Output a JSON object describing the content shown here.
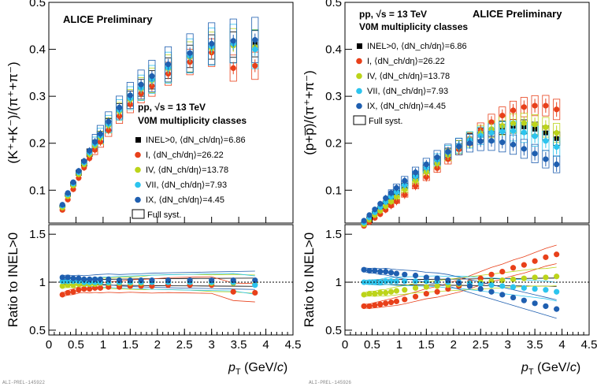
{
  "chart_data": [
    {
      "type": "scatter",
      "id": "left",
      "preliminary_label": "ALICE Preliminary",
      "system_label": "pp, √s = 13 TeV",
      "subtitle": "V0M multiplicity classes",
      "ylabel": "(K⁺+K⁻)/(π⁺+π⁻)",
      "ratio_ylabel": "Ratio to INEL>0",
      "xlabel": "p_T (GeV/c)",
      "xlim": [
        0,
        4.5
      ],
      "ylim": [
        0.03,
        0.5
      ],
      "ratio_ylim": [
        0.45,
        1.6
      ],
      "xticks": [
        "0",
        "0.5",
        "1",
        "1.5",
        "2",
        "2.5",
        "3",
        "3.5",
        "4",
        "4.5"
      ],
      "yticks": [
        "0.1",
        "0.2",
        "0.3",
        "0.4",
        "0.5"
      ],
      "ratio_yticks": [
        "0.5",
        "1",
        "1.5"
      ],
      "legend_position": "center-right",
      "syst_label": "Full syst.",
      "series": [
        {
          "name": "INEL>0, ⟨dN_ch/dη⟩=6.86",
          "color": "#000000",
          "marker": "square",
          "x": [
            0.25,
            0.35,
            0.45,
            0.55,
            0.65,
            0.75,
            0.85,
            0.95,
            1.1,
            1.3,
            1.5,
            1.7,
            1.9,
            2.2,
            2.6,
            3.0,
            3.4,
            3.8
          ],
          "y": [
            0.066,
            0.09,
            0.113,
            0.137,
            0.158,
            0.18,
            0.198,
            0.215,
            0.24,
            0.27,
            0.295,
            0.318,
            0.335,
            0.36,
            0.385,
            0.405,
            0.41,
            0.412
          ],
          "ratio": [
            1,
            1,
            1,
            1,
            1,
            1,
            1,
            1,
            1,
            1,
            1,
            1,
            1,
            1,
            1,
            1,
            1,
            1
          ]
        },
        {
          "name": "I, ⟨dN_ch/dη⟩=26.22",
          "color": "#e8401a",
          "marker": "circle",
          "x": [
            0.25,
            0.35,
            0.45,
            0.55,
            0.65,
            0.75,
            0.85,
            0.95,
            1.1,
            1.3,
            1.5,
            1.7,
            1.9,
            2.2,
            2.6,
            3.0,
            3.4,
            3.8
          ],
          "y": [
            0.058,
            0.08,
            0.102,
            0.126,
            0.148,
            0.168,
            0.186,
            0.203,
            0.228,
            0.258,
            0.283,
            0.306,
            0.322,
            0.348,
            0.373,
            0.393,
            0.36,
            0.365
          ],
          "ratio": [
            0.87,
            0.89,
            0.9,
            0.92,
            0.93,
            0.93,
            0.94,
            0.94,
            0.95,
            0.95,
            0.96,
            0.96,
            0.96,
            0.97,
            0.97,
            0.97,
            0.9,
            0.89
          ]
        },
        {
          "name": "IV, ⟨dN_ch/dη⟩=13.78",
          "color": "#bcd41a",
          "marker": "circle",
          "x": [
            0.25,
            0.35,
            0.45,
            0.55,
            0.65,
            0.75,
            0.85,
            0.95,
            1.1,
            1.3,
            1.5,
            1.7,
            1.9,
            2.2,
            2.6,
            3.0,
            3.4,
            3.8
          ],
          "y": [
            0.063,
            0.087,
            0.11,
            0.134,
            0.155,
            0.176,
            0.195,
            0.212,
            0.238,
            0.268,
            0.293,
            0.316,
            0.334,
            0.359,
            0.384,
            0.402,
            0.408,
            0.405
          ],
          "ratio": [
            0.96,
            0.97,
            0.97,
            0.98,
            0.98,
            0.98,
            0.98,
            0.99,
            0.99,
            0.99,
            0.99,
            0.99,
            1.0,
            1.0,
            1.0,
            0.99,
            0.99,
            0.98
          ]
        },
        {
          "name": "VII, ⟨dN_ch/dη⟩=7.93",
          "color": "#2cc4ee",
          "marker": "circle",
          "x": [
            0.25,
            0.35,
            0.45,
            0.55,
            0.65,
            0.75,
            0.85,
            0.95,
            1.1,
            1.3,
            1.5,
            1.7,
            1.9,
            2.2,
            2.6,
            3.0,
            3.4,
            3.8
          ],
          "y": [
            0.067,
            0.091,
            0.114,
            0.138,
            0.159,
            0.18,
            0.199,
            0.216,
            0.241,
            0.271,
            0.296,
            0.318,
            0.336,
            0.361,
            0.386,
            0.406,
            0.412,
            0.4
          ],
          "ratio": [
            1.01,
            1.01,
            1.01,
            1.01,
            1.0,
            1.0,
            1.0,
            1.0,
            1.0,
            1.0,
            1.0,
            1.0,
            1.0,
            1.0,
            1.0,
            1.0,
            1.0,
            0.97
          ]
        },
        {
          "name": "IX, ⟨dN_ch/dη⟩=4.45",
          "color": "#1f5fb0",
          "marker": "circle",
          "x": [
            0.25,
            0.35,
            0.45,
            0.55,
            0.65,
            0.75,
            0.85,
            0.95,
            1.1,
            1.3,
            1.5,
            1.7,
            1.9,
            2.2,
            2.6,
            3.0,
            3.4,
            3.8
          ],
          "y": [
            0.069,
            0.094,
            0.117,
            0.141,
            0.162,
            0.184,
            0.203,
            0.22,
            0.246,
            0.276,
            0.302,
            0.325,
            0.343,
            0.368,
            0.392,
            0.412,
            0.418,
            0.42
          ],
          "ratio": [
            1.05,
            1.05,
            1.04,
            1.04,
            1.03,
            1.03,
            1.03,
            1.03,
            1.03,
            1.02,
            1.02,
            1.02,
            1.02,
            1.02,
            1.02,
            1.02,
            1.02,
            1.02
          ]
        }
      ]
    },
    {
      "type": "scatter",
      "id": "right",
      "preliminary_label": "ALICE Preliminary",
      "system_label": "pp, √s = 13 TeV",
      "subtitle": "V0M multiplicity classes",
      "ylabel": "(p+p̅)/(π⁺+π⁻)",
      "ratio_ylabel": "Ratio to INEL>0",
      "xlabel": "p_T (GeV/c)",
      "xlim": [
        0,
        4.5
      ],
      "ylim": [
        0.03,
        0.5
      ],
      "ratio_ylim": [
        0.45,
        1.6
      ],
      "xticks": [
        "0",
        "0.5",
        "1",
        "1.5",
        "2",
        "2.5",
        "3",
        "3.5",
        "4",
        "4.5"
      ],
      "yticks": [
        "0.1",
        "0.2",
        "0.3",
        "0.4",
        "0.5"
      ],
      "ratio_yticks": [
        "0.5",
        "1",
        "1.5"
      ],
      "legend_position": "top-left",
      "syst_label": "Full syst.",
      "series": [
        {
          "name": "INEL>0, ⟨dN_ch/dη⟩=6.86",
          "color": "#000000",
          "marker": "square",
          "x": [
            0.35,
            0.45,
            0.55,
            0.65,
            0.75,
            0.85,
            0.95,
            1.1,
            1.3,
            1.5,
            1.7,
            1.9,
            2.1,
            2.3,
            2.5,
            2.7,
            2.9,
            3.1,
            3.3,
            3.5,
            3.7,
            3.9
          ],
          "y": [
            0.031,
            0.042,
            0.053,
            0.063,
            0.074,
            0.085,
            0.095,
            0.11,
            0.128,
            0.146,
            0.163,
            0.18,
            0.195,
            0.209,
            0.22,
            0.228,
            0.233,
            0.236,
            0.235,
            0.23,
            0.222,
            0.21
          ],
          "ratio": [
            1,
            1,
            1,
            1,
            1,
            1,
            1,
            1,
            1,
            1,
            1,
            1,
            1,
            1,
            1,
            1,
            1,
            1,
            1,
            1,
            1,
            1
          ]
        },
        {
          "name": "I, ⟨dN_ch/dη⟩=26.22",
          "color": "#e8401a",
          "marker": "circle",
          "x": [
            0.35,
            0.45,
            0.55,
            0.65,
            0.75,
            0.85,
            0.95,
            1.1,
            1.3,
            1.5,
            1.7,
            1.9,
            2.1,
            2.3,
            2.5,
            2.7,
            2.9,
            3.1,
            3.3,
            3.5,
            3.7,
            3.9
          ],
          "y": [
            0.024,
            0.032,
            0.041,
            0.049,
            0.058,
            0.067,
            0.076,
            0.09,
            0.109,
            0.128,
            0.147,
            0.166,
            0.187,
            0.209,
            0.228,
            0.245,
            0.259,
            0.27,
            0.277,
            0.28,
            0.28,
            0.272
          ],
          "ratio": [
            0.75,
            0.75,
            0.76,
            0.77,
            0.78,
            0.79,
            0.8,
            0.82,
            0.85,
            0.88,
            0.9,
            0.93,
            0.96,
            1.0,
            1.04,
            1.08,
            1.11,
            1.15,
            1.18,
            1.22,
            1.26,
            1.29
          ]
        },
        {
          "name": "IV, ⟨dN_ch/dη⟩=13.78",
          "color": "#bcd41a",
          "marker": "circle",
          "x": [
            0.35,
            0.45,
            0.55,
            0.65,
            0.75,
            0.85,
            0.95,
            1.1,
            1.3,
            1.5,
            1.7,
            1.9,
            2.1,
            2.3,
            2.5,
            2.7,
            2.9,
            3.1,
            3.3,
            3.5,
            3.7,
            3.9
          ],
          "y": [
            0.027,
            0.037,
            0.047,
            0.056,
            0.066,
            0.076,
            0.086,
            0.101,
            0.12,
            0.139,
            0.157,
            0.175,
            0.192,
            0.208,
            0.221,
            0.23,
            0.237,
            0.242,
            0.243,
            0.24,
            0.234,
            0.222
          ],
          "ratio": [
            0.87,
            0.88,
            0.88,
            0.89,
            0.89,
            0.9,
            0.91,
            0.92,
            0.94,
            0.95,
            0.96,
            0.97,
            0.98,
            0.99,
            1.0,
            1.01,
            1.02,
            1.03,
            1.04,
            1.05,
            1.05,
            1.06
          ]
        },
        {
          "name": "VII, ⟨dN_ch/dη⟩=7.93",
          "color": "#2cc4ee",
          "marker": "circle",
          "x": [
            0.35,
            0.45,
            0.55,
            0.65,
            0.75,
            0.85,
            0.95,
            1.1,
            1.3,
            1.5,
            1.7,
            1.9,
            2.1,
            2.3,
            2.5,
            2.7,
            2.9,
            3.1,
            3.3,
            3.5,
            3.7,
            3.9
          ],
          "y": [
            0.031,
            0.042,
            0.053,
            0.064,
            0.075,
            0.086,
            0.096,
            0.111,
            0.13,
            0.148,
            0.165,
            0.181,
            0.195,
            0.207,
            0.216,
            0.222,
            0.225,
            0.226,
            0.223,
            0.215,
            0.205,
            0.192
          ],
          "ratio": [
            1.0,
            1.0,
            1.0,
            1.0,
            1.01,
            1.01,
            1.01,
            1.01,
            1.01,
            1.01,
            1.01,
            1.0,
            1.0,
            0.99,
            0.98,
            0.97,
            0.96,
            0.95,
            0.94,
            0.93,
            0.92,
            0.9
          ]
        },
        {
          "name": "IX, ⟨dN_ch/dη⟩=4.45",
          "color": "#1f5fb0",
          "marker": "circle",
          "x": [
            0.35,
            0.45,
            0.55,
            0.65,
            0.75,
            0.85,
            0.95,
            1.1,
            1.3,
            1.5,
            1.7,
            1.9,
            2.1,
            2.3,
            2.5,
            2.7,
            2.9,
            3.1,
            3.3,
            3.5,
            3.7,
            3.9
          ],
          "y": [
            0.035,
            0.047,
            0.059,
            0.071,
            0.083,
            0.094,
            0.105,
            0.12,
            0.138,
            0.155,
            0.17,
            0.182,
            0.193,
            0.2,
            0.204,
            0.205,
            0.202,
            0.197,
            0.188,
            0.178,
            0.166,
            0.155
          ],
          "ratio": [
            1.13,
            1.12,
            1.12,
            1.11,
            1.11,
            1.1,
            1.09,
            1.08,
            1.07,
            1.05,
            1.04,
            1.02,
            0.99,
            0.96,
            0.93,
            0.9,
            0.87,
            0.84,
            0.81,
            0.78,
            0.75,
            0.72
          ]
        }
      ]
    }
  ],
  "tags": [
    "ALI-PREL-145922",
    "ALI-PREL-145926"
  ]
}
